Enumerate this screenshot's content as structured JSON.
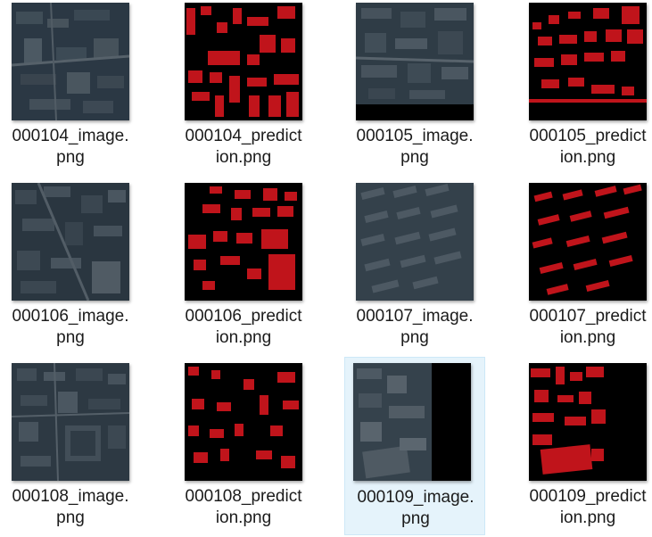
{
  "files": [
    {
      "name": "000104_image.\npng",
      "type": "image"
    },
    {
      "name": "000104_predict\nion.png",
      "type": "prediction"
    },
    {
      "name": "000105_image.\npng",
      "type": "image"
    },
    {
      "name": "000105_predict\nion.png",
      "type": "prediction"
    },
    {
      "name": "000106_image.\npng",
      "type": "image"
    },
    {
      "name": "000106_predict\nion.png",
      "type": "prediction"
    },
    {
      "name": "000107_image.\npng",
      "type": "image"
    },
    {
      "name": "000107_predict\nion.png",
      "type": "prediction"
    },
    {
      "name": "000108_image.\npng",
      "type": "image"
    },
    {
      "name": "000108_predict\nion.png",
      "type": "prediction"
    },
    {
      "name": "000109_image.\npng",
      "type": "image",
      "selected": true
    },
    {
      "name": "000109_predict\nion.png",
      "type": "prediction"
    }
  ],
  "colors": {
    "selection_bg": "#e5f3fb",
    "prediction_bg": "#000000",
    "prediction_mask": "#c0141b",
    "satellite_base": "#2b3a45"
  }
}
